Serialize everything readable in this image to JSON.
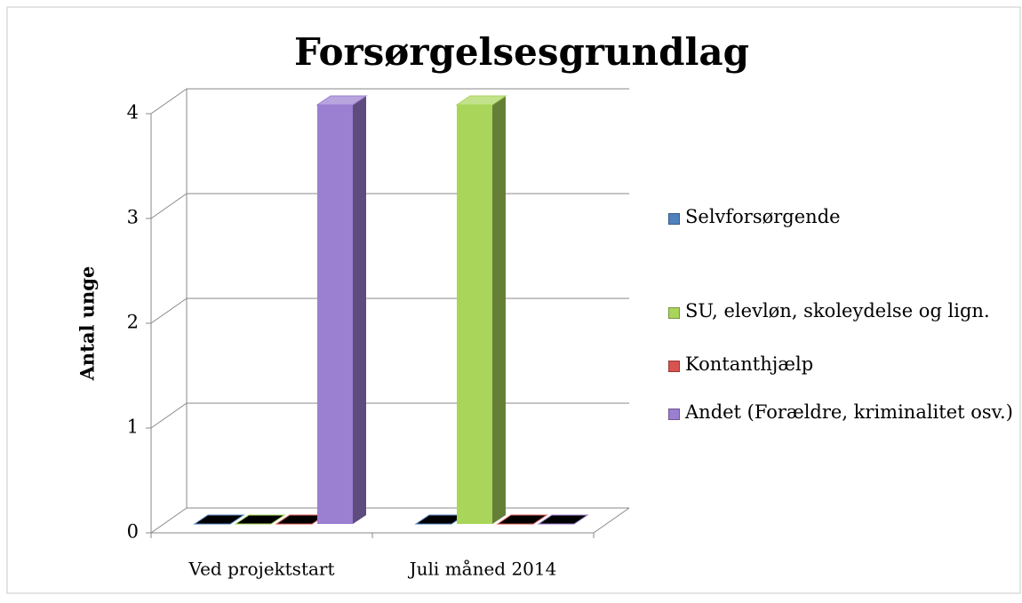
{
  "chart_data": {
    "type": "bar3d",
    "title": "Forsørgelsesgrundlag",
    "y_label": "Antal unge",
    "categories": [
      "Ved projektstart",
      "Juli måned 2014"
    ],
    "series": [
      {
        "name": "Selvforsørgende",
        "color": "#4f81bd",
        "values": [
          0,
          0
        ]
      },
      {
        "name": "SU, elevløn, skoleydelse og lign.",
        "color": "#a9d65a",
        "values": [
          0,
          4
        ]
      },
      {
        "name": "Kontanthjælp",
        "color": "#d9534f",
        "values": [
          0,
          0
        ]
      },
      {
        "name": "Andet (Forældre, kriminalitet osv.)",
        "color": "#9b7fd0",
        "values": [
          4,
          0
        ]
      }
    ],
    "ylim": [
      0,
      4
    ],
    "yticks": [
      0,
      1,
      2,
      3,
      4
    ],
    "grid": true,
    "legend": "right"
  }
}
